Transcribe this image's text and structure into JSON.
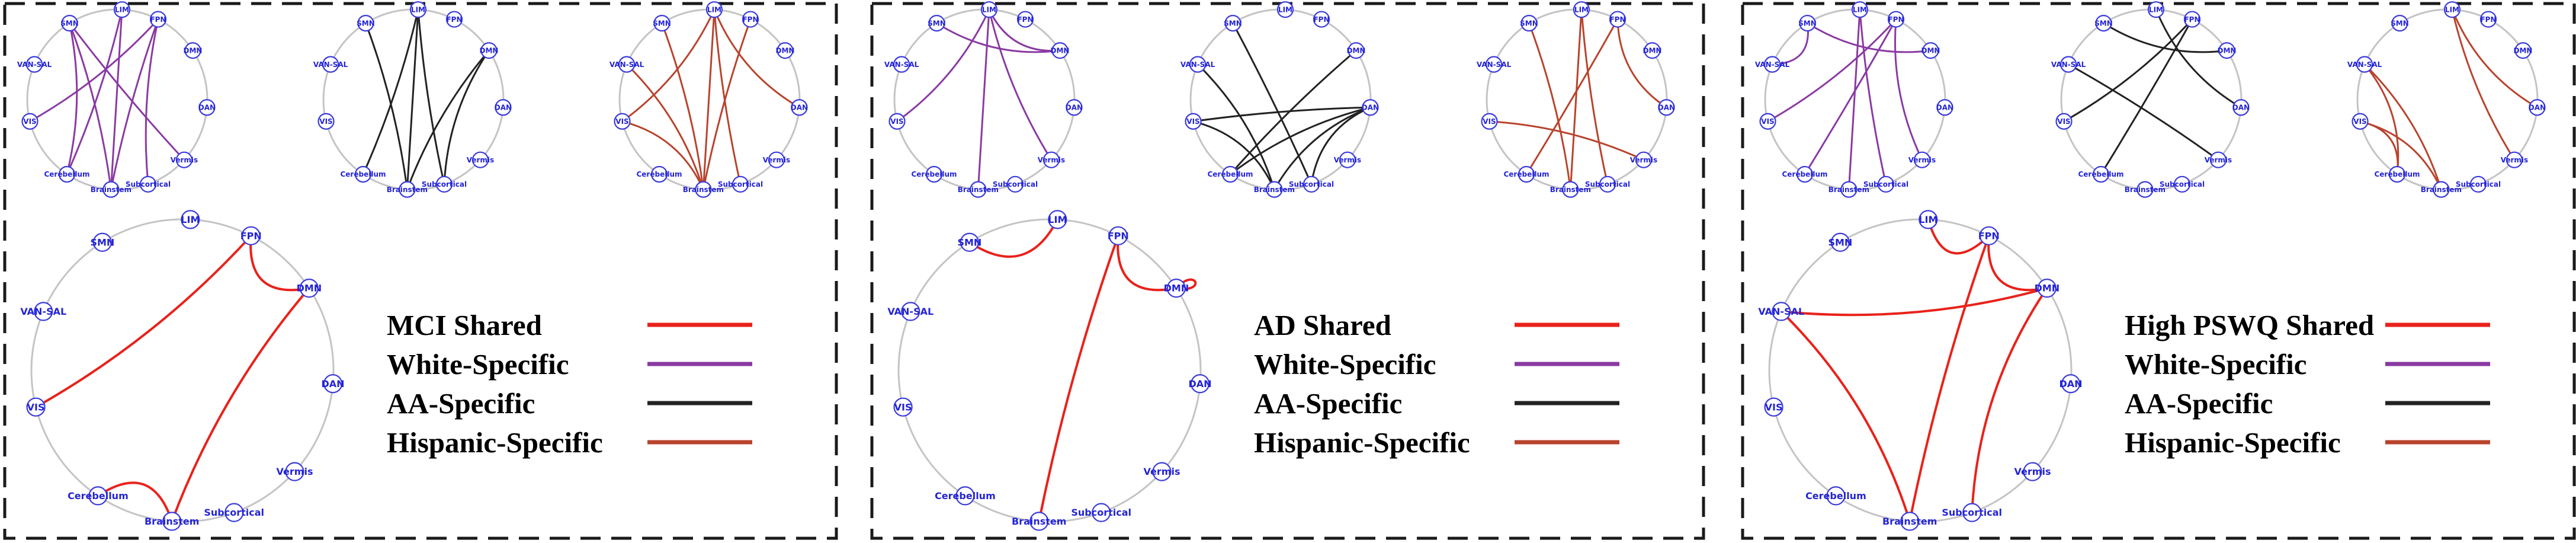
{
  "colors": {
    "shared": "#e8221b",
    "white": "#8a3aa3",
    "aa": "#222222",
    "hispanic": "#b8432d"
  },
  "nodes": [
    "LIM",
    "FPN",
    "DMN",
    "DAN",
    "Vermis",
    "Subcortical",
    "Brainstem",
    "Cerebellum",
    "VIS",
    "VAN-SAL",
    "SMN"
  ],
  "legend_keys": [
    "white",
    "aa",
    "hispanic"
  ],
  "panels": [
    {
      "id": "mci",
      "legend": {
        "shared_label": "MCI Shared",
        "white_label": "White-Specific",
        "aa_label": "AA-Specific",
        "hispanic_label": "Hispanic-Specific"
      },
      "small": [
        {
          "group": "white",
          "edges": [
            [
              "SMN",
              "Brainstem"
            ],
            [
              "SMN",
              "Cerebellum"
            ],
            [
              "SMN",
              "Vermis"
            ],
            [
              "FPN",
              "Subcortical"
            ],
            [
              "FPN",
              "VIS"
            ],
            [
              "FPN",
              "Brainstem"
            ],
            [
              "LIM",
              "Brainstem"
            ],
            [
              "LIM",
              "Cerebellum"
            ]
          ]
        },
        {
          "group": "aa",
          "edges": [
            [
              "LIM",
              "Brainstem"
            ],
            [
              "LIM",
              "Cerebellum"
            ],
            [
              "LIM",
              "Subcortical"
            ],
            [
              "SMN",
              "Brainstem"
            ],
            [
              "DMN",
              "Subcortical"
            ],
            [
              "DMN",
              "Brainstem"
            ]
          ]
        },
        {
          "group": "hispanic",
          "edges": [
            [
              "LIM",
              "VIS"
            ],
            [
              "LIM",
              "Brainstem"
            ],
            [
              "LIM",
              "Subcortical"
            ],
            [
              "LIM",
              "DAN"
            ],
            [
              "VAN-SAL",
              "Brainstem"
            ],
            [
              "VIS",
              "Brainstem"
            ],
            [
              "FPN",
              "Brainstem"
            ],
            [
              "SMN",
              "Brainstem"
            ]
          ]
        }
      ],
      "shared": [
        [
          "FPN",
          "VIS"
        ],
        [
          "FPN",
          "DMN"
        ],
        [
          "Brainstem",
          "DMN"
        ],
        [
          "Cerebellum",
          "Brainstem"
        ]
      ]
    },
    {
      "id": "ad",
      "legend": {
        "shared_label": "AD Shared",
        "white_label": "White-Specific",
        "aa_label": "AA-Specific",
        "hispanic_label": "Hispanic-Specific"
      },
      "small": [
        {
          "group": "white",
          "edges": [
            [
              "LIM",
              "VIS"
            ],
            [
              "LIM",
              "Brainstem"
            ],
            [
              "LIM",
              "DMN"
            ],
            [
              "LIM",
              "Vermis"
            ],
            [
              "SMN",
              "DMN"
            ]
          ]
        },
        {
          "group": "aa",
          "edges": [
            [
              "VAN-SAL",
              "Brainstem"
            ],
            [
              "VIS",
              "Brainstem"
            ],
            [
              "DAN",
              "Cerebellum"
            ],
            [
              "DAN",
              "Brainstem"
            ],
            [
              "DAN",
              "Subcortical"
            ],
            [
              "DMN",
              "Cerebellum"
            ],
            [
              "SMN",
              "Subcortical"
            ],
            [
              "VIS",
              "DAN"
            ]
          ]
        },
        {
          "group": "hispanic",
          "edges": [
            [
              "LIM",
              "Brainstem"
            ],
            [
              "LIM",
              "Subcortical"
            ],
            [
              "SMN",
              "Brainstem"
            ],
            [
              "FPN",
              "Cerebellum"
            ],
            [
              "FPN",
              "DAN"
            ],
            [
              "VIS",
              "Vermis"
            ]
          ]
        }
      ],
      "shared": [
        [
          "LIM",
          "SMN"
        ],
        [
          "FPN",
          "DMN"
        ],
        [
          "FPN",
          "Brainstem"
        ],
        [
          "DMN",
          "DMN"
        ]
      ]
    },
    {
      "id": "pswq",
      "legend": {
        "shared_label": "High PSWQ Shared",
        "white_label": "White-Specific",
        "aa_label": "AA-Specific",
        "hispanic_label": "Hispanic-Specific"
      },
      "small": [
        {
          "group": "white",
          "edges": [
            [
              "FPN",
              "Cerebellum"
            ],
            [
              "FPN",
              "Vermis"
            ],
            [
              "FPN",
              "VIS"
            ],
            [
              "SMN",
              "VAN-SAL"
            ],
            [
              "SMN",
              "DMN"
            ],
            [
              "LIM",
              "Subcortical"
            ],
            [
              "LIM",
              "Brainstem"
            ]
          ]
        },
        {
          "group": "aa",
          "edges": [
            [
              "LIM",
              "DAN"
            ],
            [
              "FPN",
              "Cerebellum"
            ],
            [
              "FPN",
              "VIS"
            ],
            [
              "SMN",
              "DMN"
            ],
            [
              "VAN-SAL",
              "Vermis"
            ]
          ]
        },
        {
          "group": "hispanic",
          "edges": [
            [
              "LIM",
              "Vermis"
            ],
            [
              "LIM",
              "DAN"
            ],
            [
              "VAN-SAL",
              "Brainstem"
            ],
            [
              "VAN-SAL",
              "Cerebellum"
            ],
            [
              "VIS",
              "Brainstem"
            ],
            [
              "VIS",
              "Cerebellum"
            ]
          ]
        }
      ],
      "shared": [
        [
          "LIM",
          "FPN"
        ],
        [
          "FPN",
          "DMN"
        ],
        [
          "VAN-SAL",
          "DMN"
        ],
        [
          "VAN-SAL",
          "Brainstem"
        ],
        [
          "Brainstem",
          "FPN"
        ],
        [
          "Subcortical",
          "DMN"
        ]
      ]
    }
  ]
}
